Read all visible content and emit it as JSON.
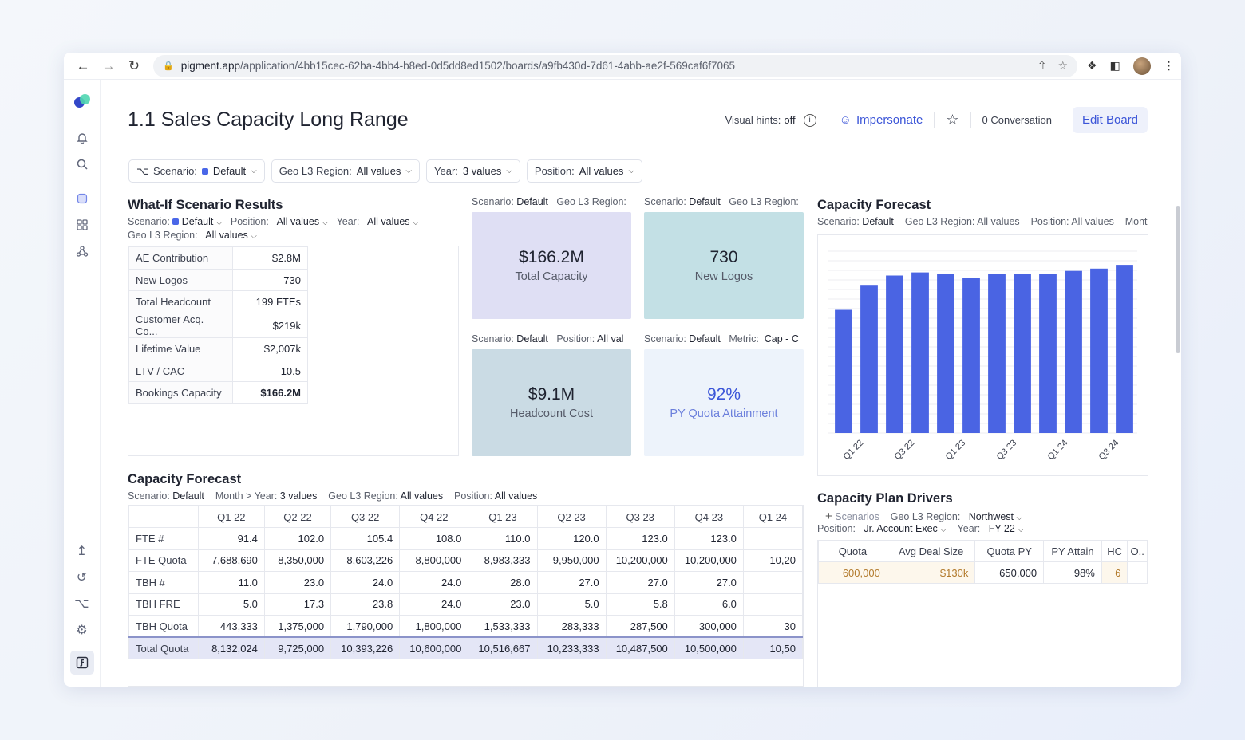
{
  "browser": {
    "url_host": "pigment.app",
    "url_path": "/application/4bb15cec-62ba-4bb4-b8ed-0d5dd8ed1502/boards/a9fb430d-7d61-4abb-ae2f-569caf6f7065"
  },
  "header": {
    "title": "1.1 Sales Capacity Long Range",
    "visual_hints_label": "Visual hints:",
    "visual_hints_value": "off",
    "impersonate_label": "Impersonate",
    "conversation_label": "0 Conversation",
    "edit_board_label": "Edit Board"
  },
  "filters": [
    {
      "label": "Scenario:",
      "value": "Default"
    },
    {
      "label": "Geo L3 Region:",
      "value": "All values"
    },
    {
      "label": "Year:",
      "value": "3 values"
    },
    {
      "label": "Position:",
      "value": "All values"
    }
  ],
  "whatif": {
    "title": "What-If Scenario Results",
    "scenario_label": "Scenario:",
    "scenario_value": "Default",
    "position_label": "Position:",
    "position_value": "All values",
    "year_label": "Year:",
    "year_value": "All values",
    "geo_label": "Geo L3 Region:",
    "geo_value": "All values",
    "rows": [
      {
        "label": "AE Contribution",
        "value": "$2.8M"
      },
      {
        "label": "New Logos",
        "value": "730"
      },
      {
        "label": "Total Headcount",
        "value": "199 FTEs"
      },
      {
        "label": "Customer Acq. Co...",
        "value": "$219k"
      },
      {
        "label": "Lifetime Value",
        "value": "$2,007k"
      },
      {
        "label": "LTV / CAC",
        "value": "10.5"
      },
      {
        "label": "Bookings Capacity",
        "value": "$166.2M"
      }
    ]
  },
  "kpis": [
    {
      "meta1_label": "Scenario:",
      "meta1_value": "Default",
      "meta2_label": "Geo L3 Region:",
      "meta2_value": "",
      "value": "$166.2M",
      "label": "Total Capacity",
      "color": "#dfdff4"
    },
    {
      "meta1_label": "Scenario:",
      "meta1_value": "Default",
      "meta2_label": "Geo L3 Region:",
      "meta2_value": "",
      "value": "730",
      "label": "New Logos",
      "color": "#c3e0e5"
    },
    {
      "meta1_label": "Scenario:",
      "meta1_value": "Default",
      "meta2_label": "Position:",
      "meta2_value": "All val",
      "value": "$9.1M",
      "label": "Headcount Cost",
      "color": "#cadbe4"
    },
    {
      "meta1_label": "Scenario:",
      "meta1_value": "Default",
      "meta2_label": "Metric:",
      "meta2_value": "Cap - C",
      "value": "92%",
      "label": "PY Quota Attainment",
      "color": "#edf3fb"
    }
  ],
  "capacity_chart": {
    "title": "Capacity Forecast",
    "scenario_label": "Scenario:",
    "scenario_value": "Default",
    "geo_label": "Geo L3 Region:",
    "geo_value": "All values",
    "position_label": "Position:",
    "position_value": "All values",
    "month_label": "Montl"
  },
  "chart_data": {
    "type": "bar",
    "title": "Capacity Forecast",
    "tick_labels": [
      "Q1 22",
      "Q3 22",
      "Q1 23",
      "Q3 23",
      "Q1 24",
      "Q3 24"
    ],
    "categories": [
      "Q1 22",
      "Q2 22",
      "Q3 22",
      "Q4 22",
      "Q1 23",
      "Q2 23",
      "Q3 23",
      "Q4 23",
      "Q1 24",
      "Q2 24",
      "Q3 24",
      "Q4 24"
    ],
    "values": [
      8132024,
      9725000,
      10393226,
      10600000,
      10516667,
      10233333,
      10487500,
      10500000,
      10500000,
      10700000,
      10850000,
      11100000
    ],
    "ylim": [
      0,
      12000000
    ],
    "grid": true,
    "color": "#4a64e3"
  },
  "capacity_table": {
    "title": "Capacity Forecast",
    "scenario_label": "Scenario:",
    "scenario_value": "Default",
    "month_label": "Month > Year:",
    "month_value": "3 values",
    "geo_label": "Geo L3 Region:",
    "geo_value": "All values",
    "position_label": "Position:",
    "position_value": "All values",
    "columns": [
      "Q1 22",
      "Q2 22",
      "Q3 22",
      "Q4 22",
      "Q1 23",
      "Q2 23",
      "Q3 23",
      "Q4 23",
      "Q1 24"
    ],
    "rows": [
      {
        "label": "FTE #",
        "values": [
          "91.4",
          "102.0",
          "105.4",
          "108.0",
          "110.0",
          "120.0",
          "123.0",
          "123.0",
          ""
        ]
      },
      {
        "label": "FTE Quota",
        "values": [
          "7,688,690",
          "8,350,000",
          "8,603,226",
          "8,800,000",
          "8,983,333",
          "9,950,000",
          "10,200,000",
          "10,200,000",
          "10,20"
        ]
      },
      {
        "label": "TBH #",
        "values": [
          "11.0",
          "23.0",
          "24.0",
          "24.0",
          "28.0",
          "27.0",
          "27.0",
          "27.0",
          ""
        ]
      },
      {
        "label": "TBH FRE",
        "values": [
          "5.0",
          "17.3",
          "23.8",
          "24.0",
          "23.0",
          "5.0",
          "5.8",
          "6.0",
          ""
        ]
      },
      {
        "label": "TBH Quota",
        "values": [
          "443,333",
          "1,375,000",
          "1,790,000",
          "1,800,000",
          "1,533,333",
          "283,333",
          "287,500",
          "300,000",
          "30"
        ]
      },
      {
        "label": "Total Quota",
        "values": [
          "8,132,024",
          "9,725,000",
          "10,393,226",
          "10,600,000",
          "10,516,667",
          "10,233,333",
          "10,487,500",
          "10,500,000",
          "10,50"
        ]
      }
    ]
  },
  "drivers": {
    "title": "Capacity Plan Drivers",
    "scenarios_label": "Scenarios",
    "geo_label": "Geo L3 Region:",
    "geo_value": "Northwest",
    "position_label": "Position:",
    "position_value": "Jr. Account Exec",
    "year_label": "Year:",
    "year_value": "FY 22",
    "columns": [
      "Quota",
      "Avg Deal Size",
      "Quota PY",
      "PY Attain",
      "HC",
      "O.."
    ],
    "row": [
      "600,000",
      "$130k",
      "650,000",
      "98%",
      "6",
      ""
    ]
  }
}
